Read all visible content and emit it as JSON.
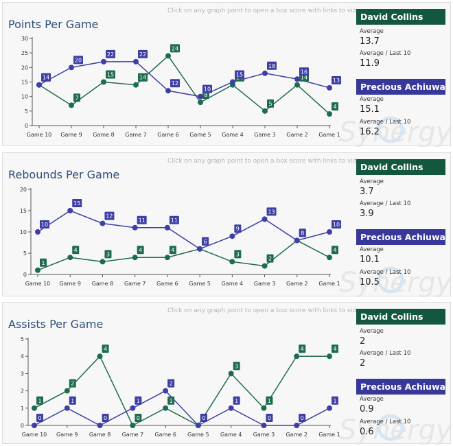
{
  "hint": "Click on any graph point to open a box score with links to video",
  "players": [
    {
      "name": "David Collins",
      "color": "#14573f"
    },
    {
      "name": "Precious  Achiuwa",
      "color": "#38389a"
    }
  ],
  "avg_label": "Average",
  "last10_label": "Average / Last 10",
  "watermark": "Synergy",
  "chart_data": [
    {
      "type": "line",
      "title": "Points Per Game",
      "categories": [
        "Game 10",
        "Game 9",
        "Game 8",
        "Game 7",
        "Game 6",
        "Game 5",
        "Game 4",
        "Game 3",
        "Game 2",
        "Game 1"
      ],
      "yticks": [
        0,
        5,
        10,
        15,
        20,
        25,
        30
      ],
      "ylim": [
        0,
        30
      ],
      "series": [
        {
          "name": "David Collins",
          "color": "#1f6b4e",
          "values": [
            14,
            7,
            15,
            14,
            24,
            8,
            14,
            5,
            14,
            4
          ]
        },
        {
          "name": "Precious  Achiuwa",
          "color": "#3e3ea6",
          "values": [
            14,
            20,
            22,
            22,
            12,
            10,
            15,
            18,
            16,
            13
          ]
        }
      ],
      "stats": [
        {
          "average": "13.7",
          "last10": "11.9"
        },
        {
          "average": "15.1",
          "last10": "16.2"
        }
      ]
    },
    {
      "type": "line",
      "title": "Rebounds Per Game",
      "categories": [
        "Game 10",
        "Game 9",
        "Game 8",
        "Game 7",
        "Game 6",
        "Game 5",
        "Game 4",
        "Game 3",
        "Game 2",
        "Game 1"
      ],
      "yticks": [
        0,
        5,
        10,
        15,
        20
      ],
      "ylim": [
        0,
        20
      ],
      "series": [
        {
          "name": "David Collins",
          "color": "#1f6b4e",
          "values": [
            1,
            4,
            3,
            4,
            4,
            6,
            3,
            2,
            8,
            4
          ]
        },
        {
          "name": "Precious  Achiuwa",
          "color": "#3e3ea6",
          "values": [
            10,
            15,
            12,
            11,
            11,
            6,
            9,
            13,
            8,
            10
          ]
        }
      ],
      "stats": [
        {
          "average": "3.7",
          "last10": "3.9"
        },
        {
          "average": "10.1",
          "last10": "10.5"
        }
      ]
    },
    {
      "type": "line",
      "title": "Assists Per Game",
      "categories": [
        "Game 10",
        "Game 9",
        "Game 8",
        "Game 7",
        "Game 6",
        "Game 5",
        "Game 4",
        "Game 3",
        "Game 2",
        "Game 1"
      ],
      "yticks": [
        0,
        1,
        2,
        3,
        4,
        5
      ],
      "ylim": [
        0,
        5
      ],
      "series": [
        {
          "name": "David Collins",
          "color": "#1f6b4e",
          "values": [
            1,
            2,
            4,
            0,
            1,
            0,
            3,
            1,
            4,
            4
          ]
        },
        {
          "name": "Precious  Achiuwa",
          "color": "#3e3ea6",
          "values": [
            0,
            1,
            0,
            1,
            2,
            0,
            1,
            0,
            0,
            1
          ]
        }
      ],
      "stats": [
        {
          "average": "2",
          "last10": "2"
        },
        {
          "average": "0.9",
          "last10": "0.6"
        }
      ]
    }
  ]
}
